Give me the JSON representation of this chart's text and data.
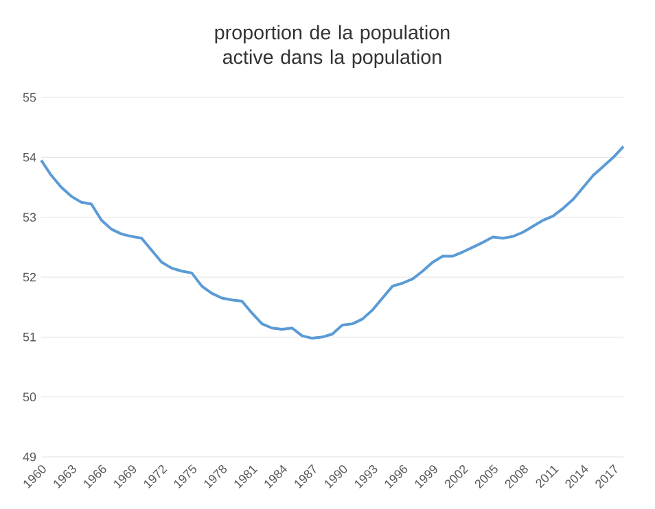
{
  "chart_data": {
    "type": "line",
    "title": "proportion de la population active dans la population",
    "x": [
      1960,
      1961,
      1962,
      1963,
      1964,
      1965,
      1966,
      1967,
      1968,
      1969,
      1970,
      1971,
      1972,
      1973,
      1974,
      1975,
      1976,
      1977,
      1978,
      1979,
      1980,
      1981,
      1982,
      1983,
      1984,
      1985,
      1986,
      1987,
      1988,
      1989,
      1990,
      1991,
      1992,
      1993,
      1994,
      1995,
      1996,
      1997,
      1998,
      1999,
      2000,
      2001,
      2002,
      2003,
      2004,
      2005,
      2006,
      2007,
      2008,
      2009,
      2010,
      2011,
      2012,
      2013,
      2014,
      2015,
      2016,
      2017,
      2018
    ],
    "series": [
      {
        "color": "#5b9bd5",
        "values": [
          53.95,
          53.7,
          53.5,
          53.35,
          53.25,
          53.22,
          52.95,
          52.8,
          52.72,
          52.68,
          52.65,
          52.45,
          52.25,
          52.15,
          52.1,
          52.07,
          51.85,
          51.73,
          51.65,
          51.62,
          51.6,
          51.4,
          51.22,
          51.15,
          51.13,
          51.15,
          51.02,
          50.98,
          51.0,
          51.05,
          51.2,
          51.22,
          51.3,
          51.45,
          51.65,
          51.85,
          51.9,
          51.97,
          52.1,
          52.25,
          52.35,
          52.35,
          52.42,
          52.5,
          52.58,
          52.67,
          52.65,
          52.68,
          52.75,
          52.85,
          52.95,
          53.02,
          53.15,
          53.3,
          53.5,
          53.7,
          53.85,
          54.0,
          54.18
        ]
      }
    ],
    "xlim": [
      1960,
      2018
    ],
    "xticks": [
      1960,
      1963,
      1966,
      1969,
      1972,
      1975,
      1978,
      1981,
      1984,
      1987,
      1990,
      1993,
      1996,
      1999,
      2002,
      2005,
      2008,
      2011,
      2014,
      2017
    ],
    "ylim": [
      49,
      55
    ],
    "yticks": [
      49,
      50,
      51,
      52,
      53,
      54,
      55
    ],
    "grid": "y",
    "marker": "none",
    "line_style": "solid"
  }
}
